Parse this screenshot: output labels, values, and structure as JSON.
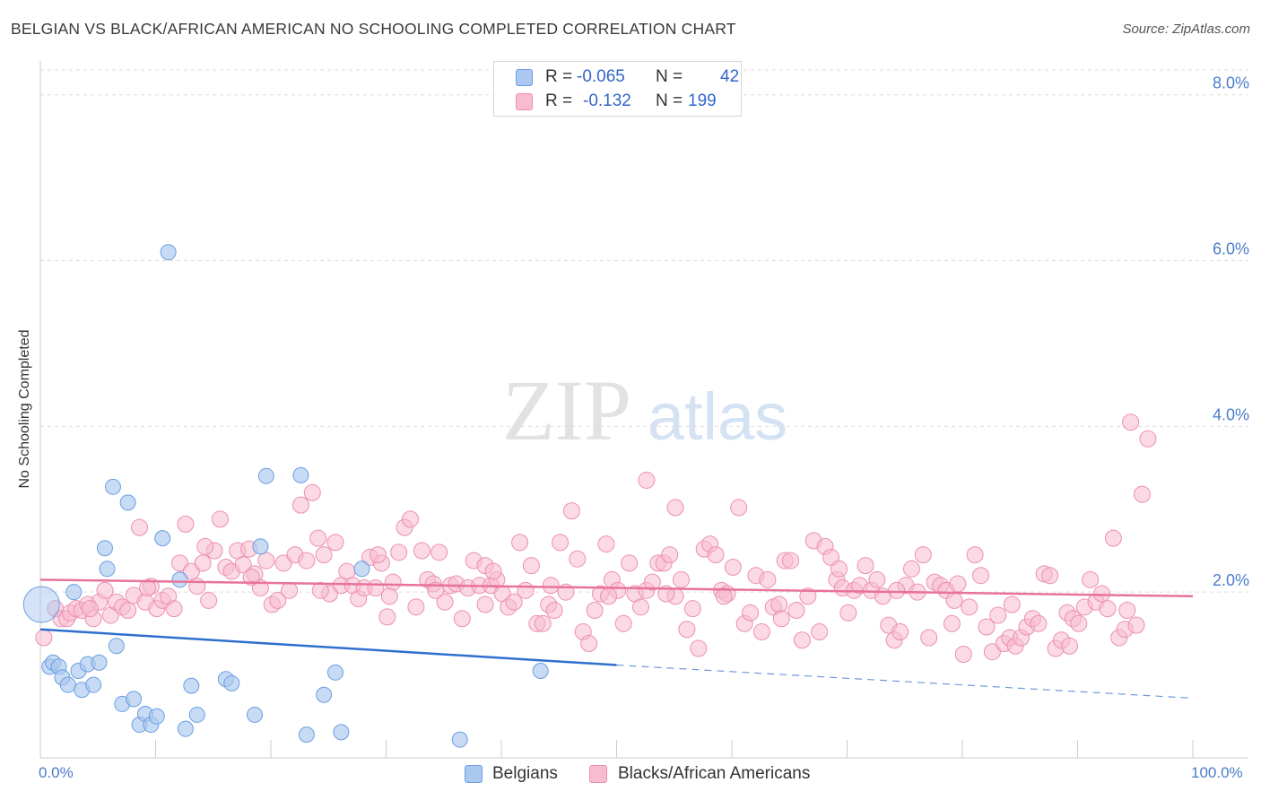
{
  "title": "BELGIAN VS BLACK/AFRICAN AMERICAN NO SCHOOLING COMPLETED CORRELATION CHART",
  "source": "Source: ZipAtlas.com",
  "watermark": {
    "zip": "ZIP",
    "atlas": "atlas"
  },
  "colors": {
    "blue_fill": "#aac8f0",
    "blue_stroke": "#6b9ee0",
    "blue_line": "#2f6fce",
    "pink_fill": "#f7bcd0",
    "pink_stroke": "#ec8fb0",
    "pink_line": "#e8739a",
    "tick_text": "#4a7cc9",
    "grid": "#dddddd"
  },
  "legend_top": {
    "rows": [
      {
        "series": "Belgians",
        "r_label": "R =",
        "r_value": "-0.065",
        "n_label": "N =",
        "n_value": "42"
      },
      {
        "series": "Blacks/African Americans",
        "r_label": "R =",
        "r_value": "-0.132",
        "n_label": "N =",
        "n_value": "199"
      }
    ]
  },
  "legend_bottom": [
    "Belgians",
    "Blacks/African Americans"
  ],
  "x_tick_labels": {
    "min": "0.0%",
    "max": "100.0%"
  },
  "chart_data": {
    "type": "scatter",
    "title": "BELGIAN VS BLACK/AFRICAN AMERICAN NO SCHOOLING COMPLETED CORRELATION CHART",
    "xlabel": "",
    "ylabel": "No Schooling Completed",
    "xlim": [
      0,
      100
    ],
    "ylim": [
      0,
      8.3
    ],
    "y_ticks": [
      {
        "value": 2,
        "label": "2.0%"
      },
      {
        "value": 4,
        "label": "4.0%"
      },
      {
        "value": 6,
        "label": "6.0%"
      },
      {
        "value": 8,
        "label": "8.0%"
      }
    ],
    "x_tick_values": [
      0,
      10,
      20,
      30,
      40,
      50,
      60,
      70,
      80,
      90,
      100
    ],
    "series": [
      {
        "name": "Belgians",
        "R": -0.065,
        "N": 42,
        "trend": {
          "x0": 0,
          "y0": 1.55,
          "x1": 50,
          "y1": 1.12,
          "dashed_to_x": 100,
          "dashed_to_y": 0.72
        },
        "points": [
          [
            0.1,
            1.85
          ],
          [
            0.8,
            1.1
          ],
          [
            1.1,
            1.15
          ],
          [
            1.6,
            1.1
          ],
          [
            1.9,
            0.97
          ],
          [
            2.4,
            0.88
          ],
          [
            2.9,
            2.0
          ],
          [
            3.3,
            1.05
          ],
          [
            3.6,
            0.82
          ],
          [
            4.1,
            1.13
          ],
          [
            4.6,
            0.88
          ],
          [
            5.1,
            1.15
          ],
          [
            5.6,
            2.53
          ],
          [
            5.8,
            2.28
          ],
          [
            6.3,
            3.27
          ],
          [
            6.6,
            1.35
          ],
          [
            7.1,
            0.65
          ],
          [
            7.6,
            3.08
          ],
          [
            8.1,
            0.71
          ],
          [
            8.6,
            0.4
          ],
          [
            9.1,
            0.53
          ],
          [
            9.6,
            0.4
          ],
          [
            10.1,
            0.5
          ],
          [
            10.6,
            2.65
          ],
          [
            11.1,
            6.1
          ],
          [
            12.1,
            2.15
          ],
          [
            12.6,
            0.35
          ],
          [
            13.1,
            0.87
          ],
          [
            13.6,
            0.52
          ],
          [
            16.1,
            0.95
          ],
          [
            16.6,
            0.9
          ],
          [
            18.6,
            0.52
          ],
          [
            19.1,
            2.55
          ],
          [
            19.6,
            3.4
          ],
          [
            22.6,
            3.41
          ],
          [
            23.1,
            0.28
          ],
          [
            24.6,
            0.76
          ],
          [
            25.6,
            1.03
          ],
          [
            26.1,
            0.31
          ],
          [
            27.9,
            2.28
          ],
          [
            36.4,
            0.22
          ],
          [
            43.4,
            1.05
          ]
        ]
      },
      {
        "name": "Blacks/African Americans",
        "R": -0.132,
        "N": 199,
        "trend": {
          "x0": 0,
          "y0": 2.15,
          "x1": 100,
          "y1": 1.95
        },
        "points": [
          [
            0.3,
            1.45
          ],
          [
            1.3,
            1.8
          ],
          [
            1.8,
            1.68
          ],
          [
            2.3,
            1.68
          ],
          [
            2.6,
            1.75
          ],
          [
            3.1,
            1.8
          ],
          [
            3.6,
            1.78
          ],
          [
            4.1,
            1.85
          ],
          [
            4.6,
            1.68
          ],
          [
            5.1,
            1.88
          ],
          [
            5.6,
            2.02
          ],
          [
            6.1,
            1.72
          ],
          [
            6.6,
            1.88
          ],
          [
            7.1,
            1.82
          ],
          [
            7.6,
            1.78
          ],
          [
            8.1,
            1.96
          ],
          [
            8.6,
            2.78
          ],
          [
            9.1,
            1.88
          ],
          [
            9.6,
            2.07
          ],
          [
            10.1,
            1.8
          ],
          [
            10.6,
            1.9
          ],
          [
            11.1,
            1.95
          ],
          [
            11.6,
            1.8
          ],
          [
            12.1,
            2.35
          ],
          [
            12.6,
            2.82
          ],
          [
            13.1,
            2.25
          ],
          [
            13.6,
            2.07
          ],
          [
            14.1,
            2.35
          ],
          [
            14.6,
            1.9
          ],
          [
            15.1,
            2.5
          ],
          [
            15.6,
            2.88
          ],
          [
            16.1,
            2.3
          ],
          [
            16.6,
            2.25
          ],
          [
            17.1,
            2.5
          ],
          [
            17.6,
            2.33
          ],
          [
            18.1,
            2.52
          ],
          [
            18.6,
            2.22
          ],
          [
            19.1,
            2.05
          ],
          [
            19.6,
            2.38
          ],
          [
            20.1,
            1.85
          ],
          [
            20.6,
            1.9
          ],
          [
            21.1,
            2.35
          ],
          [
            21.6,
            2.02
          ],
          [
            22.1,
            2.45
          ],
          [
            22.6,
            3.05
          ],
          [
            23.1,
            2.38
          ],
          [
            23.6,
            3.2
          ],
          [
            24.1,
            2.65
          ],
          [
            24.6,
            2.45
          ],
          [
            25.1,
            1.98
          ],
          [
            25.6,
            2.6
          ],
          [
            26.1,
            2.08
          ],
          [
            26.6,
            2.25
          ],
          [
            27.1,
            2.08
          ],
          [
            27.6,
            1.92
          ],
          [
            28.1,
            2.05
          ],
          [
            28.6,
            2.42
          ],
          [
            29.1,
            2.05
          ],
          [
            29.6,
            2.35
          ],
          [
            30.1,
            1.7
          ],
          [
            30.6,
            2.12
          ],
          [
            31.1,
            2.48
          ],
          [
            31.6,
            2.78
          ],
          [
            32.1,
            2.88
          ],
          [
            32.6,
            1.82
          ],
          [
            33.1,
            2.5
          ],
          [
            33.6,
            2.15
          ],
          [
            34.1,
            2.1
          ],
          [
            34.6,
            2.48
          ],
          [
            35.1,
            1.88
          ],
          [
            35.6,
            2.08
          ],
          [
            36.1,
            2.1
          ],
          [
            36.6,
            1.68
          ],
          [
            37.1,
            2.05
          ],
          [
            37.6,
            2.38
          ],
          [
            38.1,
            2.08
          ],
          [
            38.6,
            2.32
          ],
          [
            39.1,
            2.08
          ],
          [
            39.6,
            2.15
          ],
          [
            40.1,
            1.98
          ],
          [
            40.6,
            1.82
          ],
          [
            41.1,
            1.88
          ],
          [
            41.6,
            2.6
          ],
          [
            42.1,
            2.02
          ],
          [
            42.6,
            2.32
          ],
          [
            43.1,
            1.62
          ],
          [
            43.6,
            1.62
          ],
          [
            44.1,
            1.85
          ],
          [
            44.6,
            1.78
          ],
          [
            45.1,
            2.6
          ],
          [
            45.6,
            2.0
          ],
          [
            46.1,
            2.98
          ],
          [
            46.6,
            2.4
          ],
          [
            47.1,
            1.52
          ],
          [
            47.6,
            1.38
          ],
          [
            48.1,
            1.78
          ],
          [
            48.6,
            1.98
          ],
          [
            49.1,
            2.58
          ],
          [
            49.6,
            2.15
          ],
          [
            50.1,
            2.02
          ],
          [
            50.6,
            1.62
          ],
          [
            51.1,
            2.35
          ],
          [
            51.6,
            1.98
          ],
          [
            52.1,
            1.82
          ],
          [
            52.6,
            2.02
          ],
          [
            53.1,
            2.12
          ],
          [
            53.6,
            2.35
          ],
          [
            54.1,
            2.35
          ],
          [
            54.6,
            2.45
          ],
          [
            55.1,
            1.95
          ],
          [
            55.6,
            2.15
          ],
          [
            56.1,
            1.55
          ],
          [
            56.6,
            1.8
          ],
          [
            57.1,
            1.32
          ],
          [
            57.6,
            2.52
          ],
          [
            58.1,
            2.58
          ],
          [
            58.6,
            2.45
          ],
          [
            59.1,
            2.02
          ],
          [
            59.6,
            1.98
          ],
          [
            60.1,
            2.3
          ],
          [
            60.6,
            3.02
          ],
          [
            61.1,
            1.62
          ],
          [
            61.6,
            1.75
          ],
          [
            62.1,
            2.2
          ],
          [
            62.6,
            1.52
          ],
          [
            63.1,
            2.15
          ],
          [
            63.6,
            1.82
          ],
          [
            64.1,
            1.85
          ],
          [
            64.6,
            2.38
          ],
          [
            65.1,
            2.38
          ],
          [
            65.6,
            1.78
          ],
          [
            66.1,
            1.42
          ],
          [
            66.6,
            1.95
          ],
          [
            67.1,
            2.62
          ],
          [
            67.6,
            1.52
          ],
          [
            68.1,
            2.55
          ],
          [
            68.6,
            2.42
          ],
          [
            69.1,
            2.15
          ],
          [
            69.6,
            2.05
          ],
          [
            70.1,
            1.75
          ],
          [
            70.6,
            2.02
          ],
          [
            71.1,
            2.08
          ],
          [
            71.6,
            2.32
          ],
          [
            72.1,
            2.02
          ],
          [
            72.6,
            2.15
          ],
          [
            73.1,
            1.95
          ],
          [
            73.6,
            1.6
          ],
          [
            74.1,
            1.42
          ],
          [
            74.6,
            1.52
          ],
          [
            75.1,
            2.08
          ],
          [
            75.6,
            2.28
          ],
          [
            76.1,
            2.0
          ],
          [
            76.6,
            2.45
          ],
          [
            77.1,
            1.45
          ],
          [
            77.6,
            2.12
          ],
          [
            78.1,
            2.08
          ],
          [
            78.6,
            2.02
          ],
          [
            79.1,
            1.62
          ],
          [
            79.6,
            2.1
          ],
          [
            80.1,
            1.25
          ],
          [
            80.6,
            1.82
          ],
          [
            81.1,
            2.45
          ],
          [
            81.6,
            2.2
          ],
          [
            82.1,
            1.58
          ],
          [
            82.6,
            1.28
          ],
          [
            83.1,
            1.72
          ],
          [
            83.6,
            1.38
          ],
          [
            84.1,
            1.45
          ],
          [
            84.6,
            1.35
          ],
          [
            85.1,
            1.45
          ],
          [
            85.6,
            1.58
          ],
          [
            86.1,
            1.68
          ],
          [
            86.6,
            1.62
          ],
          [
            87.1,
            2.22
          ],
          [
            87.6,
            2.2
          ],
          [
            88.1,
            1.32
          ],
          [
            88.6,
            1.42
          ],
          [
            89.1,
            1.75
          ],
          [
            89.6,
            1.68
          ],
          [
            90.1,
            1.62
          ],
          [
            90.6,
            1.82
          ],
          [
            91.1,
            2.15
          ],
          [
            91.6,
            1.88
          ],
          [
            92.1,
            1.98
          ],
          [
            92.6,
            1.8
          ],
          [
            93.1,
            2.65
          ],
          [
            93.6,
            1.45
          ],
          [
            94.1,
            1.55
          ],
          [
            94.6,
            4.05
          ],
          [
            95.1,
            1.6
          ],
          [
            95.6,
            3.18
          ],
          [
            96.1,
            3.85
          ],
          [
            4.3,
            1.8
          ],
          [
            9.3,
            2.05
          ],
          [
            14.3,
            2.55
          ],
          [
            18.3,
            2.18
          ],
          [
            24.3,
            2.02
          ],
          [
            29.3,
            2.45
          ],
          [
            34.3,
            2.02
          ],
          [
            39.3,
            2.25
          ],
          [
            44.3,
            2.08
          ],
          [
            49.3,
            1.95
          ],
          [
            54.3,
            1.98
          ],
          [
            59.3,
            1.95
          ],
          [
            64.3,
            1.68
          ],
          [
            69.3,
            2.28
          ],
          [
            74.3,
            2.02
          ],
          [
            79.3,
            1.9
          ],
          [
            84.3,
            1.85
          ],
          [
            89.3,
            1.35
          ],
          [
            94.3,
            1.78
          ],
          [
            52.6,
            3.35
          ],
          [
            55.1,
            3.02
          ],
          [
            30.3,
            1.95
          ],
          [
            38.6,
            1.85
          ]
        ]
      }
    ]
  }
}
